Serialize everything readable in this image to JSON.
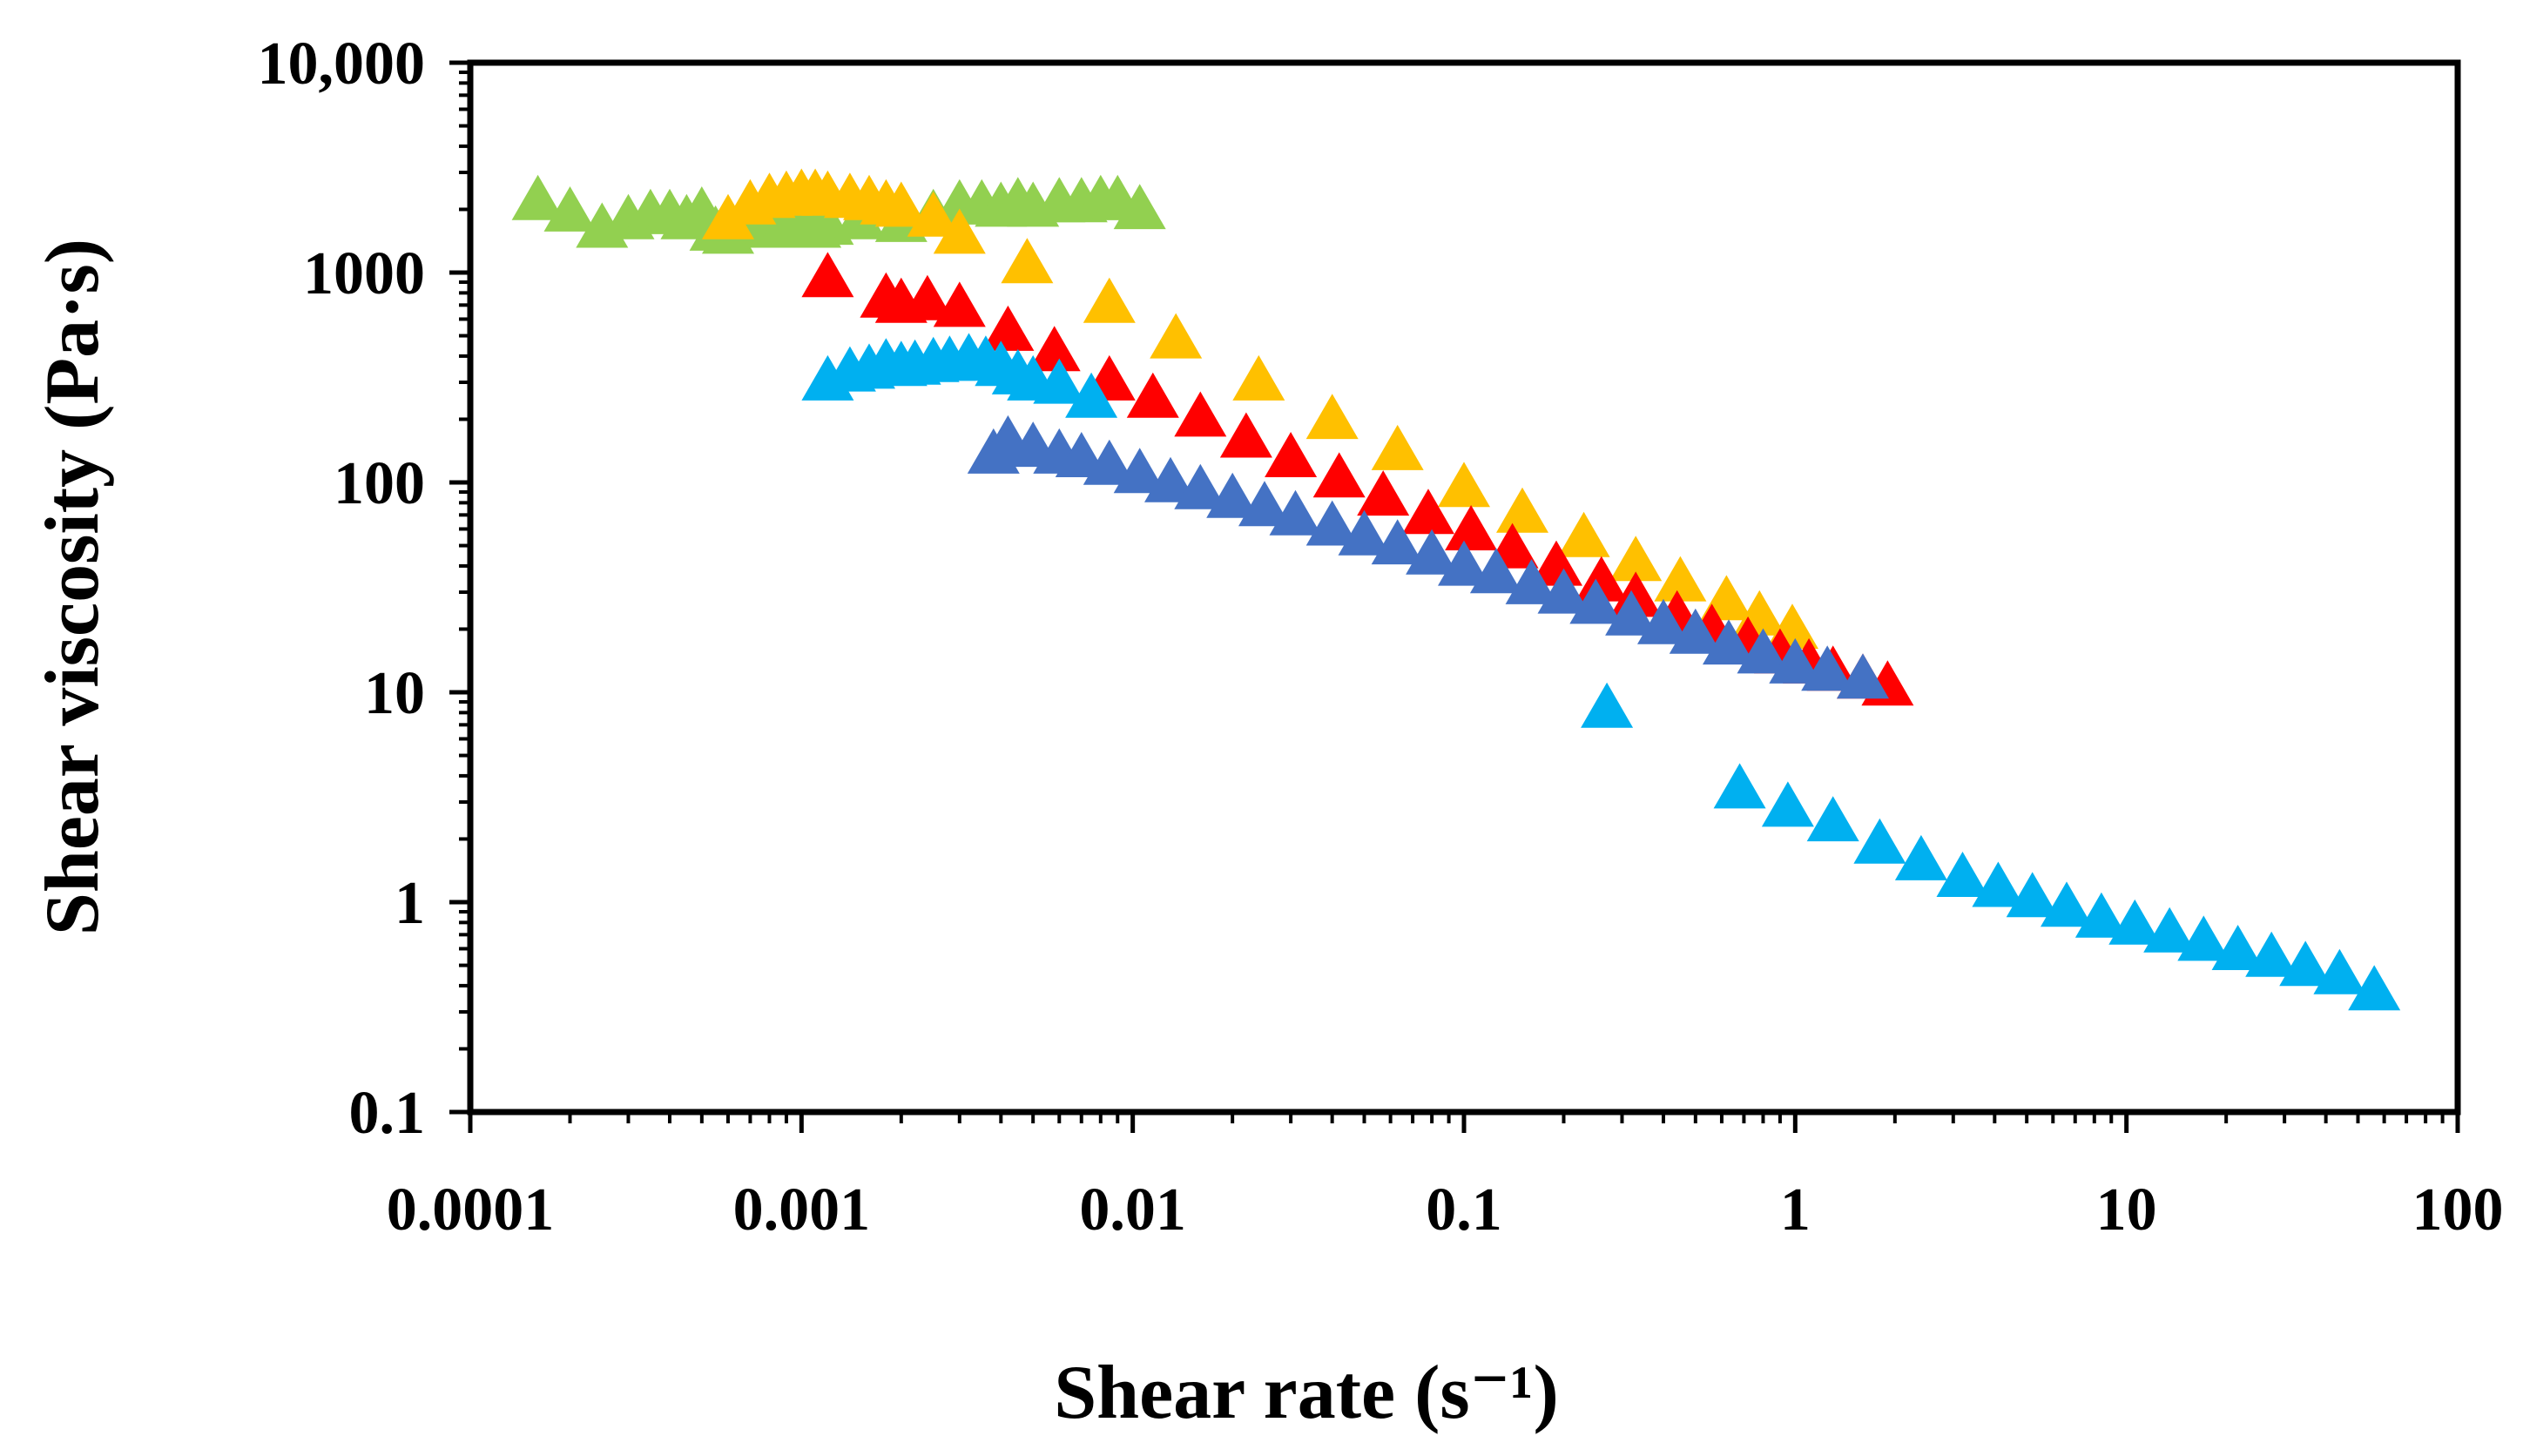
{
  "chart_data": {
    "type": "scatter",
    "title": "",
    "xlabel": "Shear rate (s⁻¹)",
    "ylabel": "Shear viscosity (Pa·s)",
    "x_scale": "log",
    "y_scale": "log",
    "xlim": [
      0.0001,
      100
    ],
    "ylim": [
      0.1,
      10000
    ],
    "grid": false,
    "legend": "none",
    "x_ticks": [
      {
        "value": 0.0001,
        "label": "0.0001"
      },
      {
        "value": 0.001,
        "label": "0.001"
      },
      {
        "value": 0.01,
        "label": "0.01"
      },
      {
        "value": 0.1,
        "label": "0.1"
      },
      {
        "value": 1,
        "label": "1"
      },
      {
        "value": 10,
        "label": "10"
      },
      {
        "value": 100,
        "label": "100"
      }
    ],
    "y_ticks": [
      {
        "value": 0.1,
        "label": "0.1"
      },
      {
        "value": 1,
        "label": "1"
      },
      {
        "value": 10,
        "label": "10"
      },
      {
        "value": 100,
        "label": "100"
      },
      {
        "value": 1000,
        "label": "1000"
      },
      {
        "value": 10000,
        "label": "10,000"
      }
    ],
    "series": [
      {
        "color": "#92D050",
        "marker": "triangle",
        "points": [
          [
            0.00016,
            2100
          ],
          [
            0.0002,
            1850
          ],
          [
            0.00025,
            1550
          ],
          [
            0.0003,
            1700
          ],
          [
            0.00035,
            1800
          ],
          [
            0.0004,
            1800
          ],
          [
            0.00045,
            1700
          ],
          [
            0.0005,
            1850
          ],
          [
            0.00055,
            1500
          ],
          [
            0.0006,
            1450
          ],
          [
            0.00065,
            1600
          ],
          [
            0.0007,
            1700
          ],
          [
            0.0008,
            1550
          ],
          [
            0.0009,
            1650
          ],
          [
            0.001,
            1550
          ],
          [
            0.0011,
            1550
          ],
          [
            0.0012,
            1600
          ],
          [
            0.0015,
            1700
          ],
          [
            0.002,
            1650
          ],
          [
            0.0025,
            1800
          ],
          [
            0.003,
            2000
          ],
          [
            0.0035,
            2000
          ],
          [
            0.004,
            1950
          ],
          [
            0.0045,
            2050
          ],
          [
            0.005,
            1950
          ],
          [
            0.006,
            2050
          ],
          [
            0.007,
            2050
          ],
          [
            0.008,
            2100
          ],
          [
            0.009,
            2100
          ],
          [
            0.0105,
            1900
          ]
        ]
      },
      {
        "color": "#FFC000",
        "marker": "triangle",
        "points": [
          [
            0.0006,
            1700
          ],
          [
            0.0007,
            2000
          ],
          [
            0.0008,
            2150
          ],
          [
            0.0009,
            2200
          ],
          [
            0.001,
            2250
          ],
          [
            0.0011,
            2250
          ],
          [
            0.0012,
            2200
          ],
          [
            0.0014,
            2150
          ],
          [
            0.0016,
            2100
          ],
          [
            0.0018,
            2000
          ],
          [
            0.002,
            1950
          ],
          [
            0.0025,
            1750
          ],
          [
            0.003,
            1450
          ],
          [
            0.0048,
            1050
          ],
          [
            0.0085,
            680
          ],
          [
            0.0135,
            460
          ],
          [
            0.024,
            290
          ],
          [
            0.04,
            190
          ],
          [
            0.063,
            135
          ],
          [
            0.1,
            90
          ],
          [
            0.15,
            68
          ],
          [
            0.23,
            52
          ],
          [
            0.33,
            40
          ],
          [
            0.45,
            32
          ],
          [
            0.62,
            26
          ],
          [
            0.78,
            22
          ],
          [
            0.98,
            19
          ]
        ]
      },
      {
        "color": "#FF0000",
        "marker": "triangle",
        "points": [
          [
            0.0012,
            900
          ],
          [
            0.0018,
            720
          ],
          [
            0.002,
            680
          ],
          [
            0.0024,
            700
          ],
          [
            0.003,
            650
          ],
          [
            0.0042,
            500
          ],
          [
            0.0058,
            400
          ],
          [
            0.0085,
            290
          ],
          [
            0.0115,
            240
          ],
          [
            0.016,
            195
          ],
          [
            0.022,
            155
          ],
          [
            0.03,
            125
          ],
          [
            0.042,
            100
          ],
          [
            0.057,
            82
          ],
          [
            0.078,
            67
          ],
          [
            0.105,
            56
          ],
          [
            0.14,
            46
          ],
          [
            0.19,
            38
          ],
          [
            0.26,
            32
          ],
          [
            0.33,
            27
          ],
          [
            0.44,
            22
          ],
          [
            0.56,
            19
          ],
          [
            0.72,
            16.5
          ],
          [
            0.9,
            14.5
          ],
          [
            1.1,
            13
          ],
          [
            1.3,
            12
          ],
          [
            1.6,
            11
          ],
          [
            1.9,
            10.2
          ]
        ]
      },
      {
        "color": "#4472C4",
        "marker": "triangle",
        "points": [
          [
            0.0038,
            130
          ],
          [
            0.0042,
            150
          ],
          [
            0.005,
            140
          ],
          [
            0.006,
            130
          ],
          [
            0.007,
            125
          ],
          [
            0.0085,
            115
          ],
          [
            0.0105,
            105
          ],
          [
            0.013,
            95
          ],
          [
            0.016,
            88
          ],
          [
            0.02,
            80
          ],
          [
            0.025,
            73
          ],
          [
            0.031,
            66
          ],
          [
            0.04,
            59
          ],
          [
            0.05,
            53
          ],
          [
            0.063,
            48
          ],
          [
            0.08,
            43
          ],
          [
            0.1,
            38
          ],
          [
            0.125,
            35
          ],
          [
            0.16,
            31
          ],
          [
            0.2,
            28
          ],
          [
            0.25,
            25
          ],
          [
            0.32,
            22
          ],
          [
            0.4,
            20
          ],
          [
            0.5,
            18
          ],
          [
            0.63,
            16
          ],
          [
            0.8,
            14.5
          ],
          [
            1.0,
            13
          ],
          [
            1.25,
            12
          ],
          [
            1.6,
            11
          ]
        ]
      },
      {
        "color": "#00B0F0",
        "marker": "triangle",
        "points": [
          [
            0.0012,
            290
          ],
          [
            0.0014,
            320
          ],
          [
            0.0016,
            330
          ],
          [
            0.0018,
            350
          ],
          [
            0.002,
            340
          ],
          [
            0.0022,
            345
          ],
          [
            0.0025,
            355
          ],
          [
            0.0028,
            360
          ],
          [
            0.0032,
            370
          ],
          [
            0.0036,
            360
          ],
          [
            0.004,
            340
          ],
          [
            0.0045,
            310
          ],
          [
            0.005,
            290
          ],
          [
            0.006,
            280
          ],
          [
            0.0075,
            240
          ],
          [
            0.27,
            8
          ],
          [
            0.68,
            3.3
          ],
          [
            0.95,
            2.7
          ],
          [
            1.3,
            2.3
          ],
          [
            1.8,
            1.8
          ],
          [
            2.4,
            1.5
          ],
          [
            3.2,
            1.25
          ],
          [
            4.1,
            1.12
          ],
          [
            5.2,
            1.0
          ],
          [
            6.6,
            0.9
          ],
          [
            8.4,
            0.8
          ],
          [
            10.6,
            0.74
          ],
          [
            13.5,
            0.68
          ],
          [
            17.1,
            0.62
          ],
          [
            21.7,
            0.56
          ],
          [
            27.4,
            0.52
          ],
          [
            34.7,
            0.47
          ],
          [
            44,
            0.43
          ],
          [
            56,
            0.36
          ]
        ]
      }
    ]
  }
}
